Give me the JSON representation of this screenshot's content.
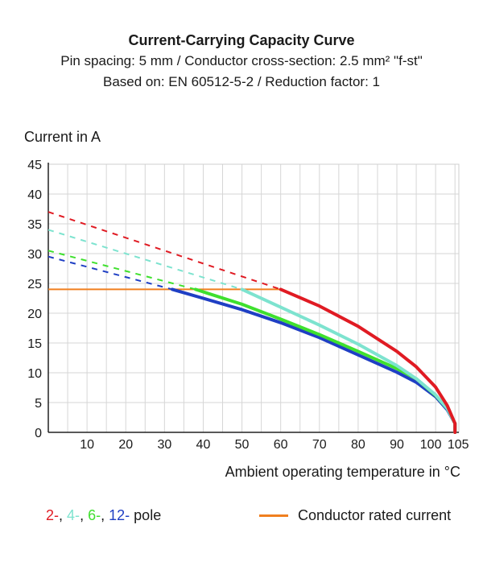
{
  "chart_data": {
    "type": "line",
    "title": "Current-Carrying Capacity Curve",
    "subtitle_1": "Pin spacing: 5 mm / Conductor cross-section: 2.5 mm² \"f-st\"",
    "subtitle_2": "Based on: EN 60512-5-2 / Reduction factor: 1",
    "ylabel": "Current in A",
    "xlabel": "Ambient operating temperature in °C",
    "xlim": [
      0,
      106
    ],
    "ylim": [
      0,
      45
    ],
    "xticks": [
      10,
      20,
      30,
      40,
      50,
      60,
      70,
      80,
      90,
      100,
      105
    ],
    "yticks": [
      0,
      5,
      10,
      15,
      20,
      25,
      30,
      35,
      40,
      45
    ],
    "grid": true,
    "rated_current": {
      "name": "Conductor rated current",
      "value": 24,
      "x": [
        0,
        60
      ],
      "color": "#f07f1f"
    },
    "series": [
      {
        "name": "2-",
        "color": "#e01b23",
        "dashed": {
          "x": [
            0,
            60
          ],
          "y": [
            37,
            24
          ]
        },
        "solid": {
          "x": [
            60,
            70,
            80,
            90,
            95,
            100,
            103,
            105,
            105
          ],
          "y": [
            24,
            21.2,
            17.8,
            13.6,
            11.0,
            7.6,
            4.5,
            1.5,
            0
          ]
        }
      },
      {
        "name": "4-",
        "color": "#7de3cf",
        "dashed": {
          "x": [
            0,
            50
          ],
          "y": [
            34,
            24
          ]
        },
        "solid": {
          "x": [
            50,
            60,
            70,
            80,
            90,
            95,
            100,
            103,
            105,
            105
          ],
          "y": [
            24,
            21.0,
            18.0,
            14.8,
            11.2,
            9.0,
            6.3,
            4.0,
            1.5,
            0
          ]
        }
      },
      {
        "name": "6-",
        "color": "#3fe02e",
        "dashed": {
          "x": [
            0,
            38
          ],
          "y": [
            30.5,
            24
          ]
        },
        "solid": {
          "x": [
            38,
            50,
            60,
            70,
            80,
            90,
            95,
            100,
            103,
            105,
            105
          ],
          "y": [
            24,
            21.5,
            19.0,
            16.4,
            13.6,
            10.7,
            9.0,
            6.2,
            4.0,
            1.5,
            0
          ]
        }
      },
      {
        "name": "12-",
        "color": "#1f3fc4",
        "dashed": {
          "x": [
            0,
            32
          ],
          "y": [
            29.5,
            24
          ]
        },
        "solid": {
          "x": [
            32,
            40,
            50,
            60,
            70,
            80,
            90,
            95,
            100,
            103,
            105,
            105
          ],
          "y": [
            24,
            22.5,
            20.6,
            18.4,
            15.9,
            13.0,
            10.1,
            8.4,
            6.0,
            3.8,
            1.5,
            0
          ]
        }
      }
    ],
    "legend": {
      "pole_suffix": "pole"
    }
  },
  "legend_separator": ","
}
